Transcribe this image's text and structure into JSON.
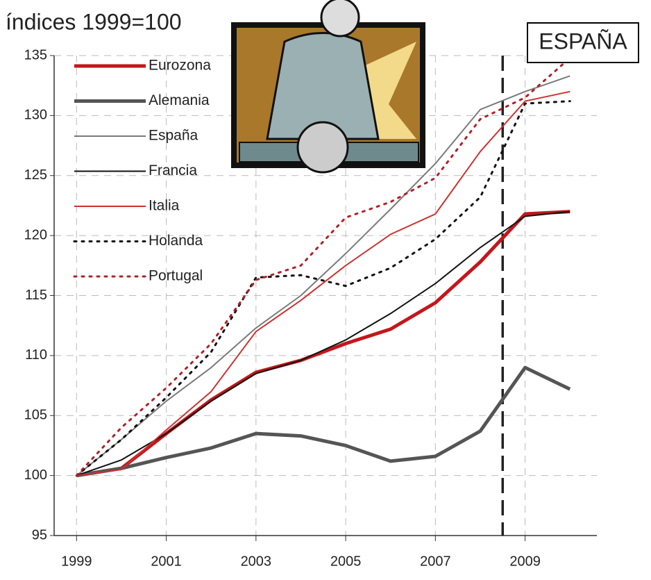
{
  "chart_data": {
    "type": "line",
    "title": "índices 1999=100",
    "annotation": "ESPAÑA",
    "x": [
      1999,
      2000,
      2001,
      2002,
      2003,
      2004,
      2005,
      2006,
      2007,
      2008,
      2009,
      2010
    ],
    "xlim": [
      1998.5,
      2010.6
    ],
    "xticks": [
      1999,
      2001,
      2003,
      2005,
      2007,
      2009
    ],
    "ylim": [
      95,
      135
    ],
    "yticks": [
      95,
      100,
      105,
      110,
      115,
      120,
      125,
      130,
      135
    ],
    "grid": true,
    "legend": "upper left",
    "vline": 2008.5,
    "series": [
      {
        "name": "Eurozona",
        "color": "#c4161c",
        "style": "thick",
        "values": [
          100,
          100.6,
          103.5,
          106.3,
          108.6,
          109.6,
          111,
          112.2,
          114.4,
          117.8,
          121.8,
          122
        ]
      },
      {
        "name": "Alemania",
        "color": "#555555",
        "style": "thick",
        "values": [
          100,
          100.6,
          101.5,
          102.3,
          103.5,
          103.3,
          102.5,
          101.2,
          101.6,
          103.7,
          109,
          107.2
        ]
      },
      {
        "name": "España",
        "color": "#7a7a7a",
        "style": "thin",
        "values": [
          100,
          103,
          106.2,
          109,
          112.3,
          115,
          118.5,
          122.2,
          126,
          130.5,
          132,
          133.3
        ]
      },
      {
        "name": "Francia",
        "color": "#111111",
        "style": "thin",
        "values": [
          100,
          101.3,
          103.5,
          106.2,
          108.5,
          109.6,
          111.3,
          113.5,
          116,
          119,
          121.6,
          122
        ]
      },
      {
        "name": "Italia",
        "color": "#d03030",
        "style": "thin",
        "values": [
          100,
          100.5,
          103.8,
          107,
          112,
          114.6,
          117.5,
          120.1,
          121.8,
          127,
          131.2,
          132
        ]
      },
      {
        "name": "Holanda",
        "color": "#111111",
        "style": "dotted",
        "values": [
          100,
          103,
          106.5,
          110.3,
          116.5,
          116.7,
          115.8,
          117.3,
          119.7,
          123.2,
          131,
          131.2
        ]
      },
      {
        "name": "Portugal",
        "color": "#b0202a",
        "style": "dotted",
        "values": [
          100,
          104,
          107.3,
          111,
          116.3,
          117.5,
          121.5,
          122.8,
          124.8,
          129.7,
          131.5,
          134.8
        ]
      }
    ]
  }
}
